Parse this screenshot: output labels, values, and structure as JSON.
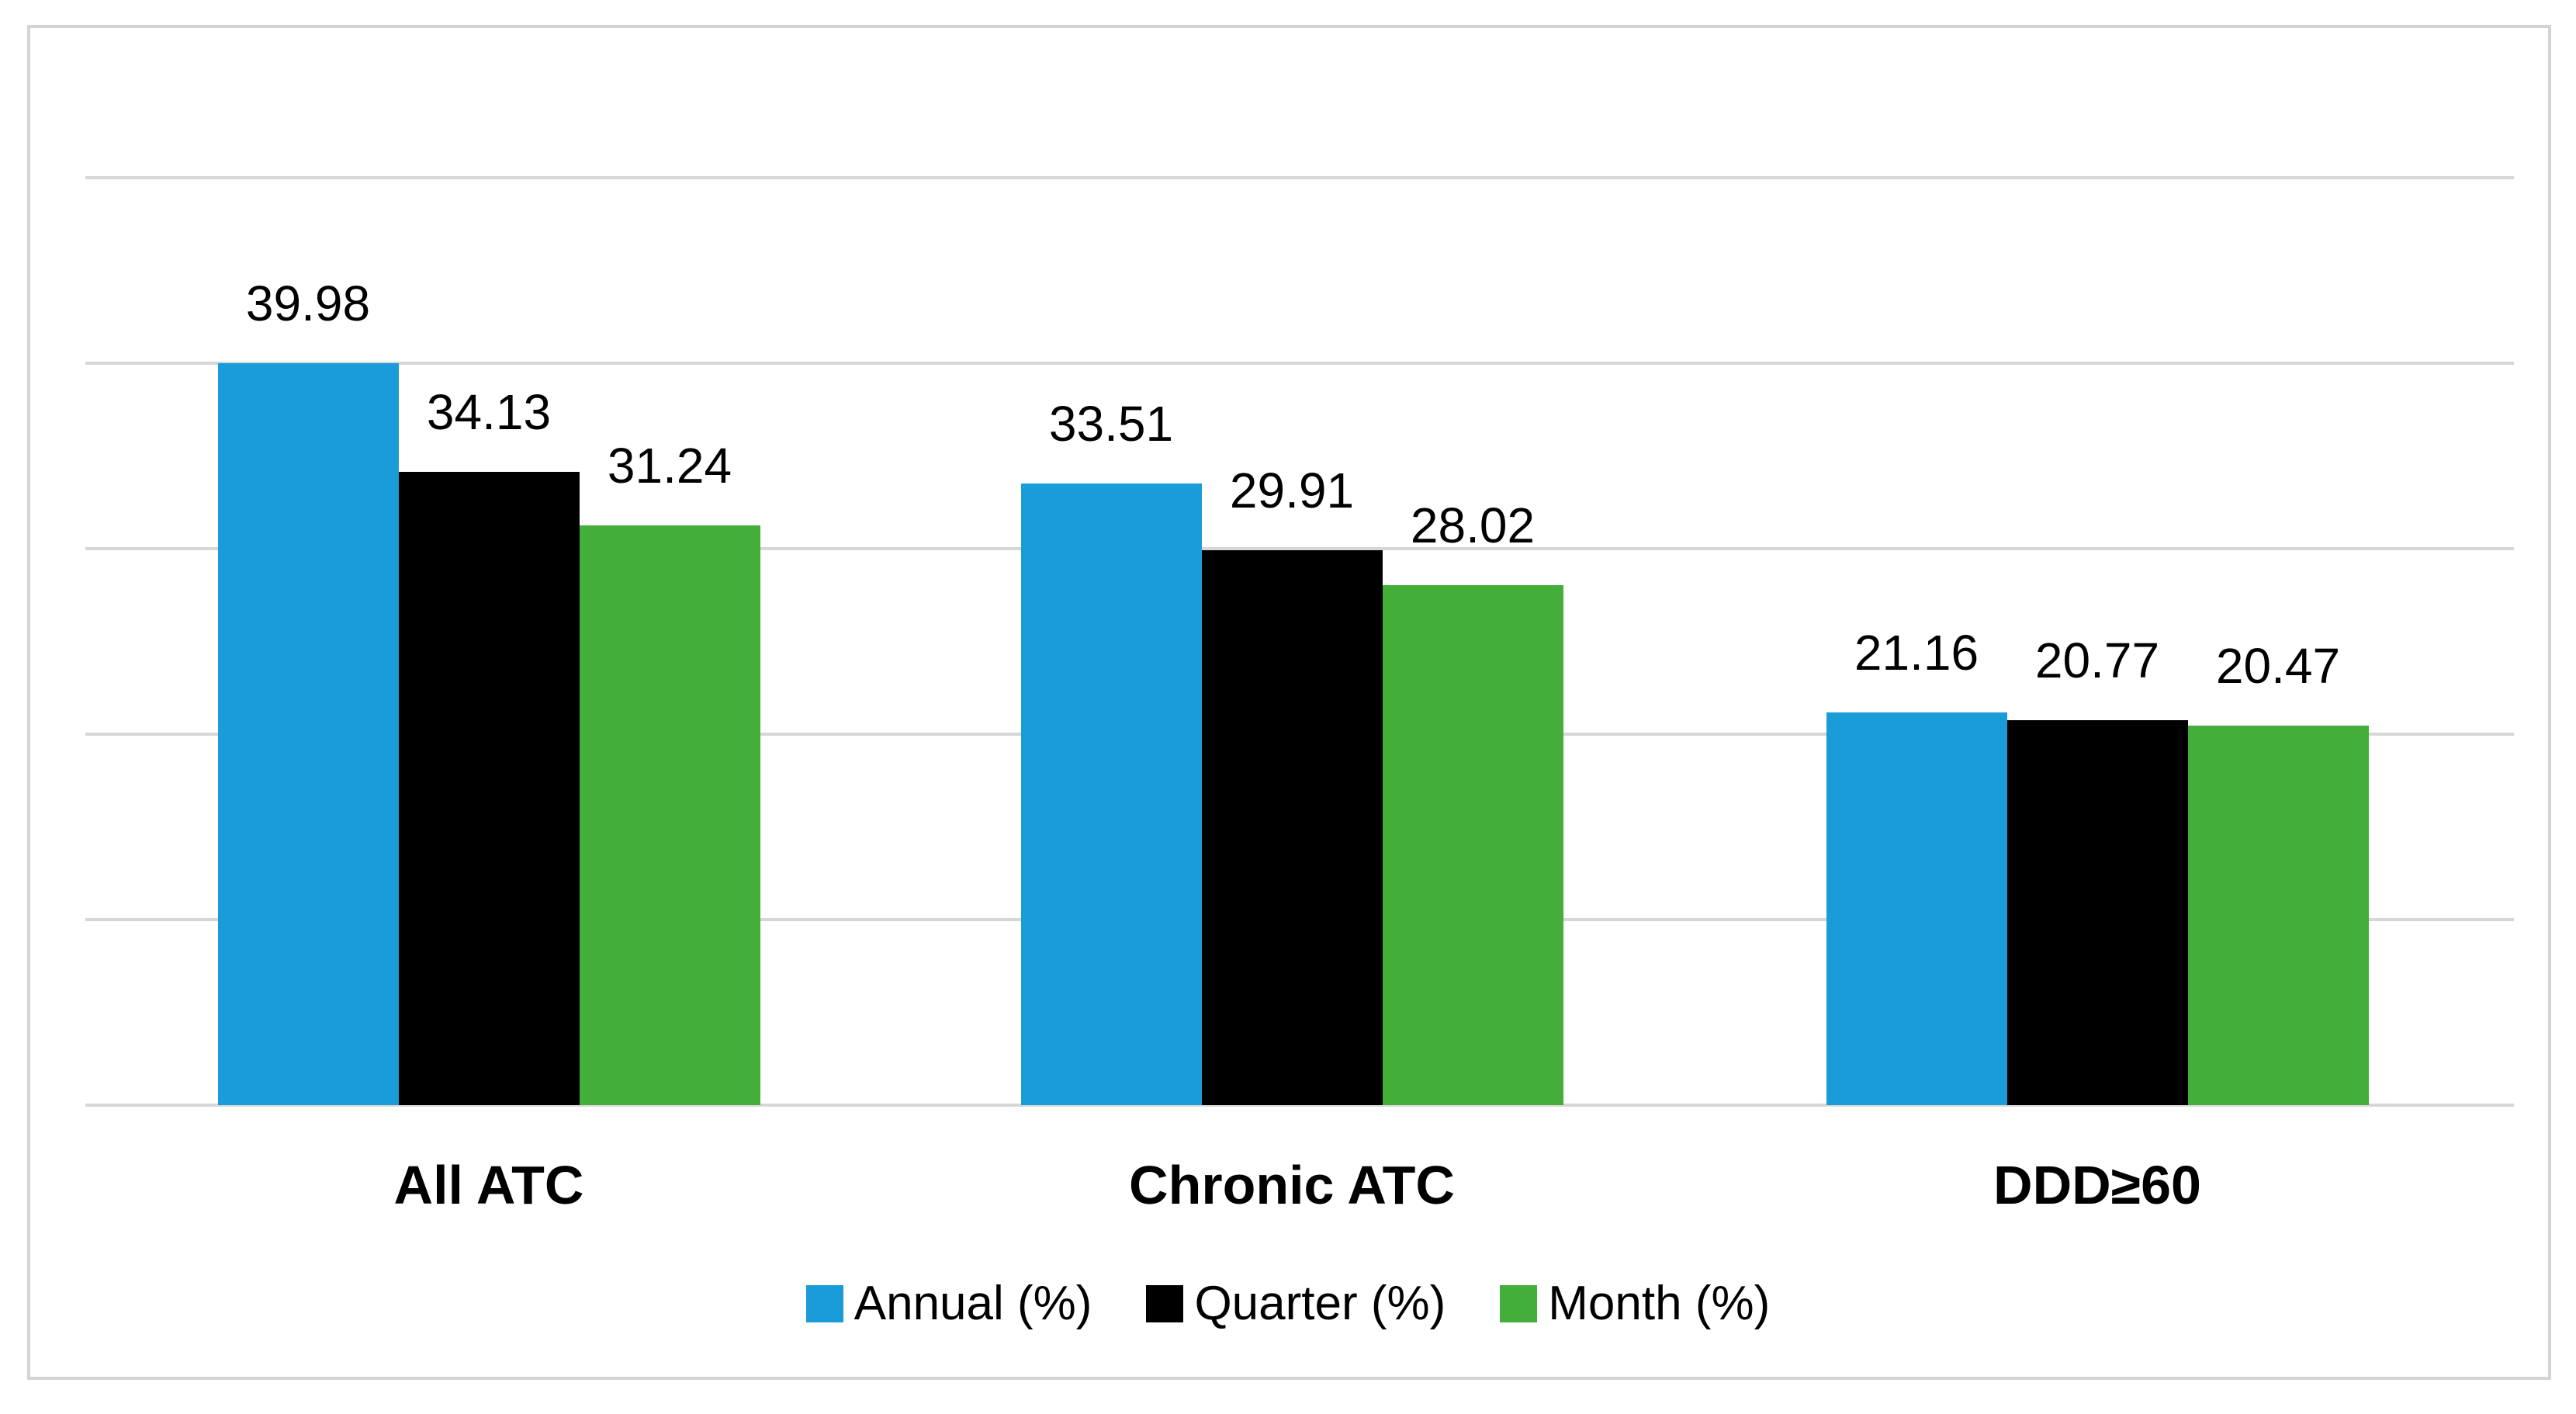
{
  "chart_data": {
    "type": "bar",
    "title": "",
    "xlabel": "",
    "ylabel": "",
    "categories": [
      "All ATC",
      "Chronic ATC",
      "DDD≥60"
    ],
    "series": [
      {
        "name": "Annual (%)",
        "color": "#1a9cd9",
        "values": [
          39.98,
          33.51,
          21.16
        ]
      },
      {
        "name": "Quarter (%)",
        "color": "#000000",
        "values": [
          34.13,
          29.91,
          20.77
        ]
      },
      {
        "name": "Month (%)",
        "color": "#44ae3a",
        "values": [
          31.24,
          28.02,
          20.47
        ]
      }
    ],
    "data_labels": [
      [
        "39.98",
        "34.13",
        "31.24"
      ],
      [
        "33.51",
        "29.91",
        "28.02"
      ],
      [
        "21.16",
        "20.77",
        "20.47"
      ]
    ],
    "ylim": [
      0,
      50
    ],
    "gridline_step": 10,
    "grid": "horizontal",
    "y_axis_tick_labels_visible": false,
    "legend_position": "bottom",
    "colors": {
      "gridline": "#d6d6d6",
      "frame_border": "#d4d4d4",
      "background": "#ffffff",
      "text": "#000000"
    }
  }
}
